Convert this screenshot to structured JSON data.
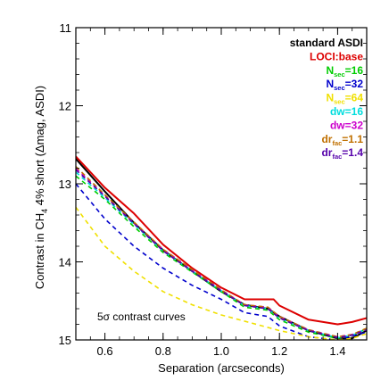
{
  "chart_data": {
    "type": "line",
    "xlabel": "Separation (arcseconds)",
    "ylabel_parts": [
      "Contrast in CH",
      "4",
      " 4% short (Δmag, ASDI)"
    ],
    "xlim": [
      0.5,
      1.5
    ],
    "ylim": [
      15,
      11
    ],
    "y_inverted": true,
    "x_ticks": [
      0.6,
      0.8,
      1.0,
      1.2,
      1.4
    ],
    "x_tick_labels": [
      "0.6",
      "0.8",
      "1.0",
      "1.2",
      "1.4"
    ],
    "y_ticks": [
      11,
      12,
      13,
      14,
      15
    ],
    "y_tick_labels": [
      "11",
      "12",
      "13",
      "14",
      "15"
    ],
    "annotation": "5σ contrast curves",
    "legend_placement": "top-right",
    "series": [
      {
        "name": "standard ASDI",
        "color": "#000000",
        "dash": "solid",
        "x": [
          0.5,
          0.6,
          0.7,
          0.8,
          0.9,
          1.0,
          1.08,
          1.16,
          1.2,
          1.3,
          1.4,
          1.45,
          1.5
        ],
        "y": [
          12.68,
          13.1,
          13.5,
          13.85,
          14.12,
          14.38,
          14.55,
          14.6,
          14.7,
          14.88,
          14.98,
          14.98,
          14.88
        ]
      },
      {
        "name": "LOCI:base",
        "color": "#dd0000",
        "dash": "solid",
        "x": [
          0.5,
          0.6,
          0.7,
          0.8,
          0.9,
          1.0,
          1.08,
          1.18,
          1.2,
          1.3,
          1.4,
          1.45,
          1.5
        ],
        "y": [
          12.65,
          13.05,
          13.38,
          13.78,
          14.08,
          14.33,
          14.48,
          14.48,
          14.56,
          14.74,
          14.8,
          14.77,
          14.72
        ]
      },
      {
        "name_parts": [
          "N",
          "sec",
          "=16"
        ],
        "color": "#00cc00",
        "dash": "dashed",
        "x": [
          0.5,
          0.6,
          0.7,
          0.8,
          0.9,
          1.0,
          1.08,
          1.16,
          1.2,
          1.3,
          1.4,
          1.45,
          1.5
        ],
        "y": [
          12.9,
          13.2,
          13.55,
          13.88,
          14.13,
          14.38,
          14.58,
          14.62,
          14.74,
          14.9,
          14.98,
          14.95,
          14.85
        ]
      },
      {
        "name_parts": [
          "N",
          "sec",
          "=32"
        ],
        "color": "#0000cc",
        "dash": "dashed",
        "x": [
          0.5,
          0.6,
          0.7,
          0.8,
          0.9,
          1.0,
          1.08,
          1.16,
          1.2,
          1.3,
          1.4,
          1.45,
          1.5
        ],
        "y": [
          13.0,
          13.45,
          13.8,
          14.08,
          14.3,
          14.48,
          14.65,
          14.7,
          14.82,
          14.96,
          15.0,
          14.95,
          14.9
        ]
      },
      {
        "name_parts": [
          "N",
          "sec",
          "=64"
        ],
        "color": "#f0e000",
        "dash": "dashed",
        "x": [
          0.5,
          0.6,
          0.7,
          0.8,
          0.9,
          1.0,
          1.1,
          1.2,
          1.3,
          1.4,
          1.45,
          1.5
        ],
        "y": [
          13.3,
          13.8,
          14.12,
          14.38,
          14.55,
          14.68,
          14.78,
          14.88,
          14.96,
          15.0,
          14.98,
          14.92
        ]
      },
      {
        "name": "dw=16",
        "color": "#00dddd",
        "dash": "dashed",
        "x": [
          0.5,
          0.6,
          0.7,
          0.8,
          0.9,
          1.0,
          1.08,
          1.16,
          1.2,
          1.3,
          1.4,
          1.45,
          1.5
        ],
        "y": [
          12.85,
          13.18,
          13.52,
          13.86,
          14.12,
          14.37,
          14.56,
          14.6,
          14.72,
          14.88,
          14.97,
          14.94,
          14.86
        ]
      },
      {
        "name": "dw=32",
        "color": "#cc00cc",
        "dash": "dashed",
        "x": [
          0.5,
          0.6,
          0.7,
          0.8,
          0.9,
          1.0,
          1.08,
          1.16,
          1.2,
          1.3,
          1.4,
          1.45,
          1.5
        ],
        "y": [
          12.8,
          13.15,
          13.5,
          13.84,
          14.1,
          14.36,
          14.55,
          14.58,
          14.7,
          14.87,
          14.96,
          14.93,
          14.86
        ]
      },
      {
        "name_parts": [
          "dr",
          "fac",
          "=1.1"
        ],
        "color": "#c07000",
        "dash": "dashed",
        "x": [
          0.5,
          0.6,
          0.7,
          0.8,
          0.9,
          1.0,
          1.08,
          1.16,
          1.2,
          1.3,
          1.4,
          1.45,
          1.5
        ],
        "y": [
          12.78,
          13.14,
          13.49,
          13.84,
          14.1,
          14.36,
          14.55,
          14.58,
          14.7,
          14.87,
          14.96,
          14.93,
          14.85
        ]
      },
      {
        "name_parts": [
          "dr",
          "fac",
          "=1.4"
        ],
        "color": "#5500aa",
        "dash": "dashed",
        "x": [
          0.5,
          0.6,
          0.7,
          0.8,
          0.9,
          1.0,
          1.08,
          1.16,
          1.2,
          1.3,
          1.4,
          1.45,
          1.5
        ],
        "y": [
          12.82,
          13.16,
          13.51,
          13.86,
          14.12,
          14.37,
          14.56,
          14.6,
          14.72,
          14.88,
          14.97,
          14.94,
          14.87
        ]
      }
    ]
  }
}
